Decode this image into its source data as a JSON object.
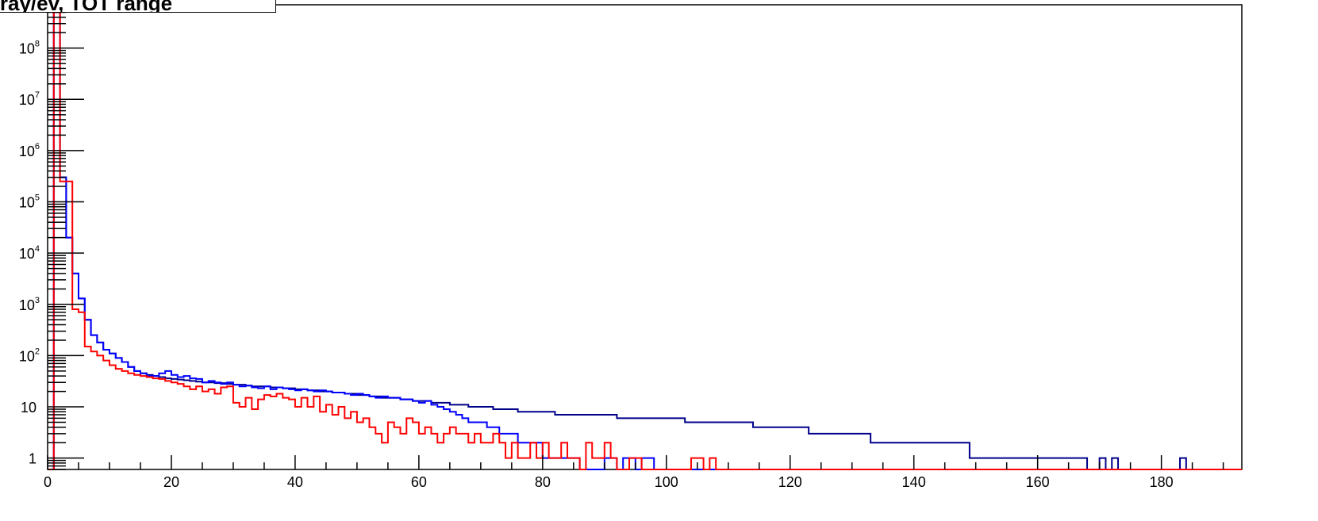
{
  "title": "nts/tray/ev, TOT range",
  "colors": {
    "blue_series": "#0000ff",
    "red_series": "#ff0000",
    "frame": "#000000",
    "background": "#ffffff"
  },
  "chart_data": {
    "type": "histogram",
    "title": "nts/tray/ev, TOT range",
    "xlabel": "",
    "ylabel": "",
    "xlim": [
      0,
      193
    ],
    "ylim": [
      0.6,
      700000000
    ],
    "y_scale": "log",
    "grid": false,
    "bin_width": 1,
    "x_ticks": [
      {
        "value": 0,
        "label": "0"
      },
      {
        "value": 20,
        "label": "20"
      },
      {
        "value": 40,
        "label": "40"
      },
      {
        "value": 60,
        "label": "60"
      },
      {
        "value": 80,
        "label": "80"
      },
      {
        "value": 100,
        "label": "100"
      },
      {
        "value": 120,
        "label": "120"
      },
      {
        "value": 140,
        "label": "140"
      },
      {
        "value": 160,
        "label": "160"
      },
      {
        "value": 180,
        "label": "180"
      }
    ],
    "y_ticks": [
      {
        "value": 1,
        "base": "1",
        "exp": ""
      },
      {
        "value": 10,
        "base": "10",
        "exp": ""
      },
      {
        "value": 100,
        "base": "10",
        "exp": "2"
      },
      {
        "value": 1000,
        "base": "10",
        "exp": "3"
      },
      {
        "value": 10000,
        "base": "10",
        "exp": "4"
      },
      {
        "value": 100000,
        "base": "10",
        "exp": "5"
      },
      {
        "value": 1000000,
        "base": "10",
        "exp": "6"
      },
      {
        "value": 10000000,
        "base": "10",
        "exp": "7"
      },
      {
        "value": 100000000,
        "base": "10",
        "exp": "8"
      }
    ],
    "series": [
      {
        "color": "#0000ff",
        "x_start": 0,
        "values": [
          0,
          500000000,
          300000,
          20000,
          4000,
          1300,
          500,
          250,
          180,
          130,
          110,
          90,
          75,
          60,
          50,
          45,
          40,
          40,
          45,
          50,
          42,
          38,
          40,
          36,
          35,
          30,
          32,
          30,
          28,
          30,
          27,
          25,
          26,
          24,
          23,
          25,
          22,
          24,
          23,
          22,
          21,
          22,
          21,
          20,
          21,
          20,
          19,
          19,
          18,
          17,
          18,
          17,
          16,
          15,
          16,
          15,
          15,
          14,
          14,
          13,
          12,
          13,
          11,
          10,
          9,
          8,
          7,
          6,
          5,
          5,
          5,
          4,
          4,
          3,
          3,
          3,
          2,
          2,
          2,
          2,
          1,
          1,
          1,
          1,
          1,
          1,
          0,
          0,
          0,
          0,
          1,
          1,
          0,
          1,
          1,
          0,
          1,
          1,
          0,
          0,
          0,
          0,
          0,
          0,
          0,
          0,
          0,
          0,
          0,
          0,
          0,
          0,
          0,
          0,
          0,
          0,
          0,
          0,
          0,
          0,
          0,
          0,
          0,
          0,
          0,
          0,
          0,
          0,
          0,
          0,
          0,
          0,
          0,
          0,
          0,
          0,
          0,
          0,
          0,
          0,
          0,
          0,
          0,
          0,
          0,
          0,
          0,
          0,
          0,
          0,
          0,
          0,
          0,
          0,
          0,
          0,
          0,
          0,
          0,
          0,
          0,
          0,
          0,
          0,
          0,
          0,
          0,
          0,
          0,
          0,
          0,
          0,
          0,
          0,
          0,
          0,
          0,
          0,
          0,
          0,
          0,
          0,
          0,
          0,
          0,
          0,
          0,
          0,
          0,
          0,
          0,
          0,
          0
        ]
      },
      {
        "color": "#ff0000",
        "x_start": 0,
        "values": [
          0,
          500000000,
          250000,
          250000,
          800,
          700,
          150,
          120,
          100,
          80,
          65,
          55,
          50,
          45,
          42,
          40,
          38,
          36,
          35,
          32,
          30,
          28,
          25,
          22,
          25,
          20,
          22,
          18,
          24,
          25,
          12,
          10,
          15,
          9,
          14,
          17,
          16,
          18,
          15,
          14,
          10,
          15,
          10,
          16,
          8,
          11,
          7,
          10,
          6,
          8,
          5,
          6,
          4,
          3,
          2,
          5,
          4,
          3,
          6,
          5,
          3,
          4,
          3,
          2,
          3,
          4,
          3,
          3,
          2,
          3,
          2,
          2,
          3,
          2,
          1,
          2,
          1,
          1,
          2,
          1,
          2,
          1,
          1,
          2,
          1,
          1,
          0,
          2,
          1,
          1,
          2,
          1,
          0,
          0,
          1,
          1,
          0,
          0,
          0,
          0,
          0,
          0,
          0,
          0,
          1,
          1,
          0,
          1,
          0,
          0,
          0,
          0,
          0,
          0,
          0,
          0,
          0,
          0,
          0,
          0,
          0,
          0,
          0,
          0,
          0,
          0,
          0,
          0,
          0,
          0,
          0,
          0,
          0,
          0,
          0,
          0,
          0,
          0,
          0,
          0,
          0,
          0,
          0,
          0,
          0,
          0,
          0,
          0,
          0,
          0,
          0,
          0,
          0,
          0,
          0,
          0,
          0,
          0,
          0,
          0,
          0,
          0,
          0,
          0,
          0,
          0,
          0,
          0,
          0,
          0,
          0,
          0,
          0,
          0,
          0,
          0,
          0,
          0,
          0,
          0,
          0,
          0,
          0,
          0,
          0,
          0,
          0,
          0,
          0,
          0,
          0,
          0,
          0
        ]
      },
      {
        "color": "#00008b",
        "x_start": 0,
        "values": [
          0,
          500000000,
          300000,
          20000,
          4000,
          1300,
          500,
          250,
          180,
          130,
          110,
          90,
          75,
          60,
          50,
          45,
          42,
          40,
          38,
          36,
          35,
          34,
          33,
          32,
          31,
          30,
          30,
          29,
          29,
          28,
          27,
          27,
          26,
          25,
          25,
          25,
          24,
          24,
          23,
          23,
          22,
          22,
          21,
          21,
          20,
          20,
          19,
          19,
          18,
          18,
          17,
          17,
          16,
          16,
          15,
          15,
          15,
          14,
          14,
          13,
          13,
          13,
          12,
          12,
          12,
          11,
          11,
          11,
          10,
          10,
          10,
          10,
          9,
          9,
          9,
          9,
          8,
          8,
          8,
          8,
          8,
          8,
          7,
          7,
          7,
          7,
          7,
          7,
          7,
          7,
          7,
          7,
          6,
          6,
          6,
          6,
          6,
          6,
          6,
          6,
          6,
          6,
          6,
          5,
          5,
          5,
          5,
          5,
          5,
          5,
          5,
          5,
          5,
          5,
          4,
          4,
          4,
          4,
          4,
          4,
          4,
          4,
          4,
          3,
          3,
          3,
          3,
          3,
          3,
          3,
          3,
          3,
          3,
          2,
          2,
          2,
          2,
          2,
          2,
          2,
          2,
          2,
          2,
          2,
          2,
          2,
          2,
          2,
          2,
          1,
          1,
          1,
          1,
          1,
          1,
          1,
          1,
          1,
          1,
          1,
          1,
          1,
          1,
          1,
          1,
          1,
          1,
          1,
          0,
          0,
          1,
          0,
          1,
          0,
          0,
          0,
          0,
          0,
          0,
          0,
          0,
          0,
          0,
          1,
          0,
          0,
          0,
          0,
          0,
          0,
          0,
          0
        ]
      }
    ]
  }
}
